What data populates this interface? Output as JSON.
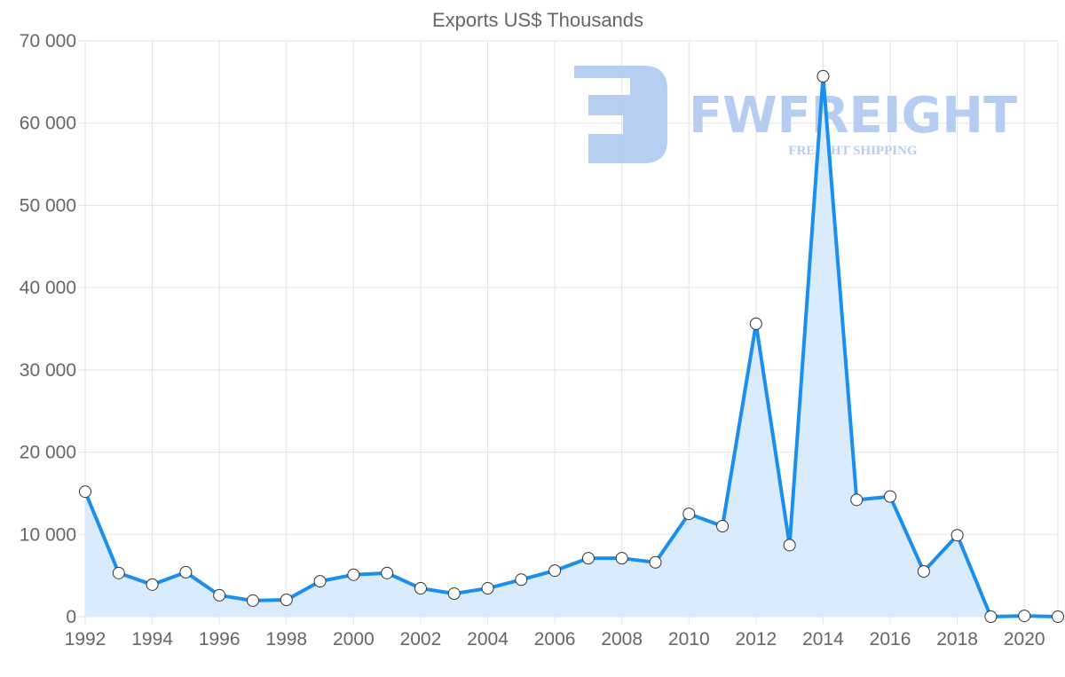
{
  "chart_data": {
    "type": "line",
    "title": "Exports US$ Thousands",
    "xlabel": "",
    "ylabel": "",
    "x": [
      1992,
      1993,
      1994,
      1995,
      1996,
      1997,
      1998,
      1999,
      2000,
      2001,
      2002,
      2003,
      2004,
      2005,
      2006,
      2007,
      2008,
      2009,
      2010,
      2011,
      2012,
      2013,
      2014,
      2015,
      2016,
      2017,
      2018,
      2019,
      2020,
      2021
    ],
    "series": [
      {
        "name": "Exports US$ Thousands",
        "values": [
          15200,
          5300,
          3900,
          5400,
          2600,
          1950,
          2050,
          4300,
          5100,
          5300,
          3450,
          2800,
          3450,
          4500,
          5600,
          7100,
          7100,
          6600,
          12500,
          11000,
          35600,
          8700,
          65700,
          14200,
          14600,
          5500,
          9900,
          0,
          100,
          0
        ],
        "color": "#1a8fef",
        "fill": "#d9ebfc"
      }
    ],
    "xlim": [
      1992,
      2021
    ],
    "ylim": [
      0,
      70000
    ],
    "x_ticks": [
      "1992",
      "1994",
      "1996",
      "1998",
      "2000",
      "2002",
      "2004",
      "2006",
      "2008",
      "2010",
      "2012",
      "2014",
      "2016",
      "2018",
      "2020"
    ],
    "y_ticks": [
      "0",
      "10 000",
      "20 000",
      "30 000",
      "40 000",
      "50 000",
      "60 000",
      "70 000"
    ],
    "grid": true,
    "legend": "none"
  },
  "watermark": {
    "brand": "FWFREIGHT",
    "tagline": "FREIGHT SHIPPING",
    "color": "#a9c4f0"
  }
}
